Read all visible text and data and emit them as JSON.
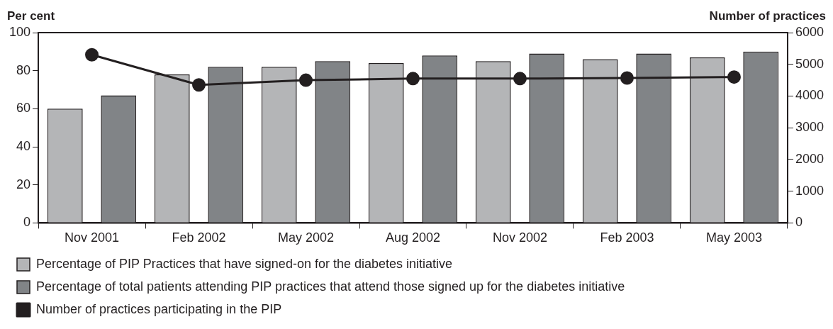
{
  "chart_data": {
    "type": "bar",
    "ylabel": "Per cent",
    "y2label": "Number of practices",
    "categories": [
      "Nov 2001",
      "Feb 2002",
      "May 2002",
      "Aug 2002",
      "Nov 2002",
      "Feb 2003",
      "May 2003"
    ],
    "series": [
      {
        "name": "Percentage of PIP Practices that have signed-on for the diabetes initiative",
        "color": "#b4b5b7",
        "values": [
          60,
          78,
          82,
          84,
          85,
          86,
          87
        ]
      },
      {
        "name": "Percentage of total patients attending PIP practices that attend those signed up for the diabetes initiative",
        "color": "#818487",
        "values": [
          67,
          82,
          85,
          88,
          89,
          89,
          90
        ]
      },
      {
        "name": "Number of practices participating in the PIP",
        "type": "line",
        "axis": "y2",
        "color": "#231f20",
        "marker": "circle",
        "values": [
          5300,
          4350,
          4500,
          4550,
          4550,
          4570,
          4600
        ]
      }
    ],
    "ylim": [
      0,
      100
    ],
    "yticks": [
      0,
      20,
      40,
      60,
      80,
      100
    ],
    "y2lim": [
      0,
      6000
    ],
    "y2ticks": [
      0,
      1000,
      2000,
      3000,
      4000,
      5000,
      6000
    ],
    "grid": false,
    "legend": "bottom"
  }
}
